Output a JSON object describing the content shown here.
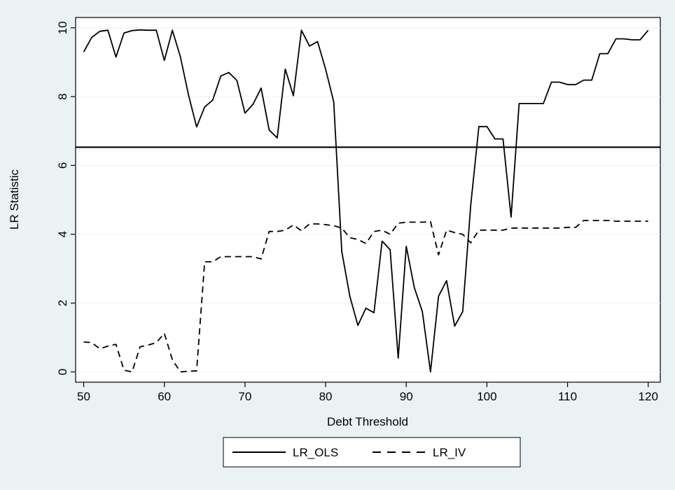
{
  "chart_data": {
    "type": "line",
    "title": "",
    "xlabel": "Debt Threshold",
    "ylabel": "LR Statistic",
    "xlim": [
      49,
      121.5
    ],
    "ylim": [
      -0.3,
      10.3
    ],
    "xticks": [
      50,
      60,
      70,
      80,
      90,
      100,
      110,
      120
    ],
    "yticks": [
      0,
      2,
      4,
      6,
      8,
      10
    ],
    "grid": true,
    "legend_position": "bottom",
    "reference_line": {
      "y": 6.53
    },
    "series": [
      {
        "name": "LR_OLS",
        "style": "solid",
        "color": "#000000",
        "x": [
          50,
          51,
          52,
          53,
          54,
          55,
          56,
          57,
          58,
          59,
          60,
          61,
          62,
          63,
          64,
          65,
          66,
          67,
          68,
          69,
          70,
          71,
          72,
          73,
          74,
          75,
          76,
          77,
          78,
          79,
          80,
          81,
          82,
          83,
          84,
          85,
          86,
          87,
          88,
          89,
          90,
          91,
          92,
          93,
          94,
          95,
          96,
          97,
          98,
          99,
          100,
          101,
          102,
          103,
          104,
          105,
          106,
          107,
          108,
          109,
          110,
          111,
          112,
          113,
          114,
          115,
          116,
          117,
          118,
          119,
          120
        ],
        "values": [
          9.3,
          9.72,
          9.9,
          9.93,
          9.15,
          9.85,
          9.92,
          9.94,
          9.93,
          9.93,
          9.05,
          9.93,
          9.15,
          8.05,
          7.12,
          7.7,
          7.9,
          8.6,
          8.7,
          8.47,
          7.52,
          7.78,
          8.25,
          7.03,
          6.8,
          8.8,
          8.03,
          9.93,
          9.47,
          9.6,
          8.8,
          7.85,
          3.5,
          2.2,
          1.35,
          1.85,
          1.72,
          3.8,
          3.55,
          0.4,
          3.65,
          2.45,
          1.75,
          0.0,
          2.2,
          2.65,
          1.33,
          1.75,
          4.85,
          7.13,
          7.13,
          6.77,
          6.77,
          4.5,
          7.8,
          7.8,
          7.8,
          7.8,
          8.42,
          8.42,
          8.35,
          8.35,
          8.48,
          8.48,
          9.25,
          9.25,
          9.68,
          9.68,
          9.65,
          9.65,
          9.93
        ]
      },
      {
        "name": "LR_IV",
        "style": "dashed",
        "color": "#000000",
        "x": [
          50,
          51,
          52,
          53,
          54,
          55,
          56,
          57,
          58,
          59,
          60,
          61,
          62,
          63,
          64,
          65,
          66,
          67,
          68,
          69,
          70,
          71,
          72,
          73,
          74,
          75,
          76,
          77,
          78,
          79,
          80,
          81,
          82,
          83,
          84,
          85,
          86,
          87,
          88,
          89,
          90,
          91,
          92,
          93,
          94,
          95,
          96,
          97,
          98,
          99,
          100,
          101,
          102,
          103,
          104,
          105,
          106,
          107,
          108,
          109,
          110,
          111,
          112,
          113,
          114,
          115,
          116,
          117,
          118,
          119,
          120
        ],
        "values": [
          0.87,
          0.85,
          0.67,
          0.75,
          0.8,
          0.05,
          0.0,
          0.73,
          0.78,
          0.85,
          1.12,
          0.35,
          0.0,
          0.02,
          0.03,
          3.2,
          3.2,
          3.35,
          3.35,
          3.35,
          3.35,
          3.35,
          3.28,
          4.08,
          4.08,
          4.12,
          4.27,
          4.1,
          4.3,
          4.3,
          4.28,
          4.25,
          4.18,
          3.9,
          3.85,
          3.73,
          4.08,
          4.12,
          4.0,
          4.32,
          4.35,
          4.35,
          4.35,
          4.37,
          3.4,
          4.12,
          4.05,
          4.0,
          3.75,
          4.12,
          4.12,
          4.12,
          4.12,
          4.18,
          4.18,
          4.18,
          4.18,
          4.18,
          4.18,
          4.18,
          4.2,
          4.2,
          4.4,
          4.4,
          4.4,
          4.4,
          4.38,
          4.38,
          4.38,
          4.38,
          4.38
        ]
      }
    ]
  },
  "colors": {
    "background": "#eaf2f3",
    "plot_background": "#ffffff",
    "grid": "#eaf2f3",
    "line": "#000000"
  }
}
